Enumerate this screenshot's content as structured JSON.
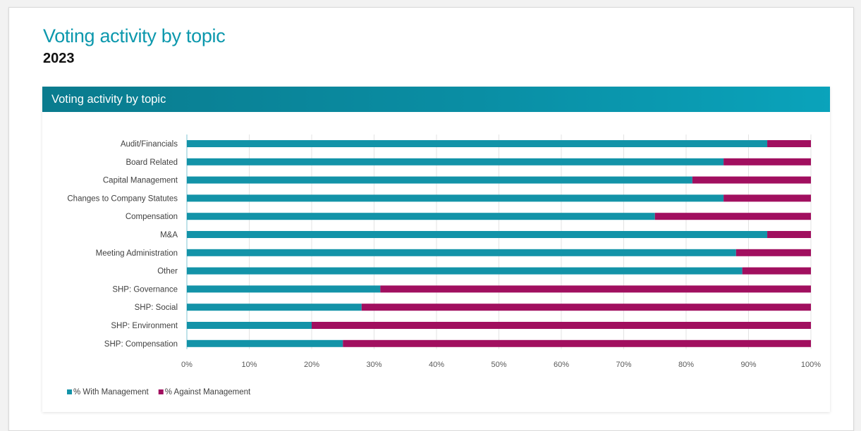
{
  "page": {
    "title": "Voting activity by topic",
    "year": "2023"
  },
  "card": {
    "header": "Voting activity by topic"
  },
  "colors": {
    "title": "#0c98ad",
    "with": "#1393a8",
    "against": "#a10f5f",
    "grid": "#e3e3e3",
    "axis": "#7fc6d3"
  },
  "chart_data": {
    "type": "bar",
    "orientation": "horizontal",
    "stacked": "percent",
    "categories": [
      "Audit/Financials",
      "Board Related",
      "Capital Management",
      "Changes to Company Statutes",
      "Compensation",
      "M&A",
      "Meeting Administration",
      "Other",
      "SHP: Governance",
      "SHP: Social",
      "SHP: Environment",
      "SHP: Compensation"
    ],
    "series": [
      {
        "name": "% With Management",
        "values": [
          93,
          86,
          81,
          86,
          75,
          93,
          88,
          89,
          31,
          28,
          20,
          25
        ]
      },
      {
        "name": "% Against Management",
        "values": [
          7,
          14,
          19,
          14,
          25,
          7,
          12,
          11,
          69,
          72,
          80,
          75
        ]
      }
    ],
    "xlim": [
      0,
      100
    ],
    "x_ticks": [
      "0%",
      "10%",
      "20%",
      "30%",
      "40%",
      "50%",
      "60%",
      "70%",
      "80%",
      "90%",
      "100%"
    ],
    "grid": "vertical",
    "legend": "bottom-left"
  }
}
